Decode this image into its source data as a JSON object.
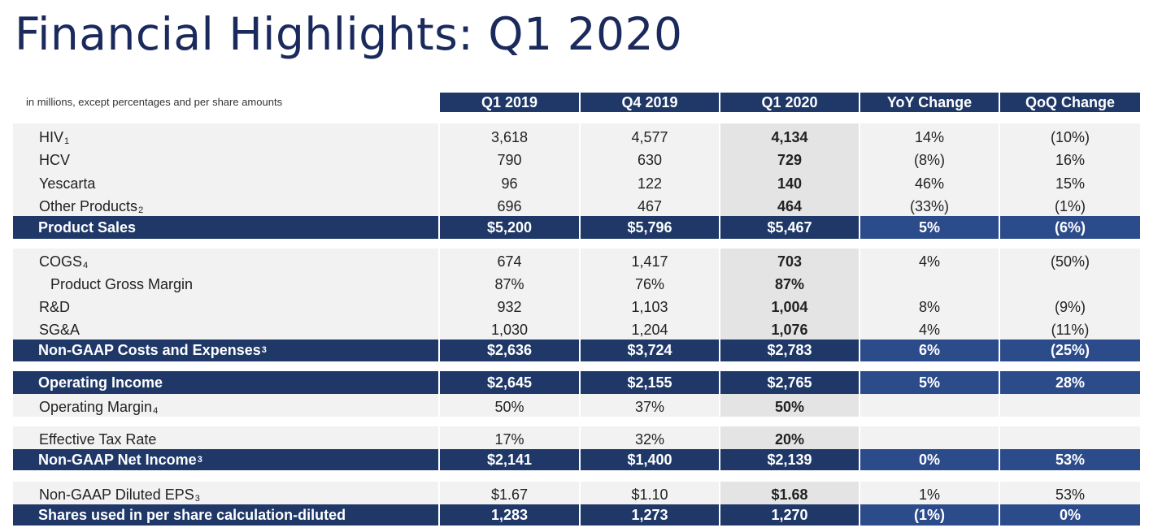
{
  "title": "Financial Highlights: Q1 2020",
  "note": "in millions, except percentages and per share amounts",
  "columns": [
    "Q1 2019",
    "Q4 2019",
    "Q1 2020",
    "YoY Change",
    "QoQ Change"
  ],
  "colors": {
    "navy": "#1f3868",
    "blue": "#2c4b8a",
    "title": "#1b2a5c",
    "row_bg": "#f2f2f2",
    "highlight_bg": "#e4e4e4"
  },
  "rows": [
    {
      "label": "HIV",
      "sup": "1",
      "indent": 1,
      "type": "sub",
      "values": [
        "3,618",
        "4,577",
        "4,134",
        "14%",
        "(10%)"
      ]
    },
    {
      "label": "HCV",
      "sup": "",
      "indent": 1,
      "type": "sub",
      "values": [
        "790",
        "630",
        "729",
        "(8%)",
        "16%"
      ]
    },
    {
      "label": "Yescarta",
      "sup": "",
      "indent": 1,
      "type": "sub",
      "values": [
        "96",
        "122",
        "140",
        "46%",
        "15%"
      ]
    },
    {
      "label": "Other Products",
      "sup": "2",
      "indent": 1,
      "type": "sub",
      "values": [
        "696",
        "467",
        "464",
        "(33%)",
        "(1%)"
      ]
    },
    {
      "label": "Product Sales",
      "sup": "",
      "indent": 0,
      "type": "total",
      "values": [
        "$5,200",
        "$5,796",
        "$5,467",
        "5%",
        "(6%)"
      ]
    },
    {
      "label": "COGS",
      "sup": "4",
      "indent": 1,
      "type": "sub",
      "values": [
        "674",
        "1,417",
        "703",
        "4%",
        "(50%)"
      ]
    },
    {
      "label": "Product Gross Margin",
      "sup": "",
      "indent": 2,
      "type": "sub",
      "values": [
        "87%",
        "76%",
        "87%",
        "",
        ""
      ]
    },
    {
      "label": "R&D",
      "sup": "",
      "indent": 1,
      "type": "sub",
      "values": [
        "932",
        "1,103",
        "1,004",
        "8%",
        "(9%)"
      ]
    },
    {
      "label": "SG&A",
      "sup": "",
      "indent": 1,
      "type": "sub",
      "values": [
        "1,030",
        "1,204",
        "1,076",
        "4%",
        "(11%)"
      ]
    },
    {
      "label": "Non-GAAP Costs and Expenses",
      "sup": "3",
      "indent": 0,
      "type": "total",
      "values": [
        "$2,636",
        "$3,724",
        "$2,783",
        "6%",
        "(25%)"
      ]
    },
    {
      "label": "Operating Income",
      "sup": "",
      "indent": 0,
      "type": "total",
      "values": [
        "$2,645",
        "$2,155",
        "$2,765",
        "5%",
        "28%"
      ]
    },
    {
      "label": "Operating Margin",
      "sup": "4",
      "indent": 1,
      "type": "sub",
      "values": [
        "50%",
        "37%",
        "50%",
        "",
        ""
      ]
    },
    {
      "label": "Effective Tax Rate",
      "sup": "",
      "indent": 1,
      "type": "sub",
      "values": [
        "17%",
        "32%",
        "20%",
        "",
        ""
      ]
    },
    {
      "label": "Non-GAAP Net Income",
      "sup": "3",
      "indent": 0,
      "type": "total",
      "values": [
        "$2,141",
        "$1,400",
        "$2,139",
        "0%",
        "53%"
      ]
    },
    {
      "label": "Non-GAAP Diluted EPS",
      "sup": "3",
      "indent": 1,
      "type": "sub",
      "values": [
        "$1.67",
        "$1.10",
        "$1.68",
        "1%",
        "53%"
      ]
    },
    {
      "label": "Shares used in per share calculation-diluted",
      "sup": "",
      "indent": 0,
      "type": "total",
      "values": [
        "1,283",
        "1,273",
        "1,270",
        "(1%)",
        "0%"
      ]
    }
  ]
}
